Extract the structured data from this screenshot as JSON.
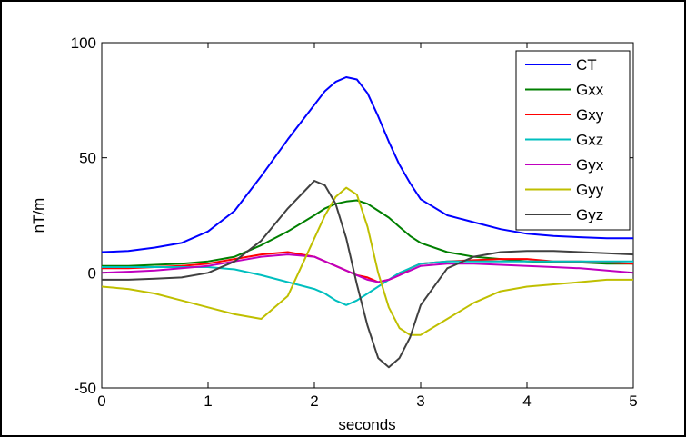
{
  "chart_data": {
    "type": "line",
    "title": "",
    "xlabel": "seconds",
    "ylabel": "nT/m",
    "xlim": [
      0,
      5
    ],
    "ylim": [
      -50,
      100
    ],
    "xticks": [
      0,
      1,
      2,
      3,
      4,
      5
    ],
    "yticks": [
      -50,
      0,
      50,
      100
    ],
    "grid": false,
    "legend_position": "top-right",
    "x": [
      0,
      0.25,
      0.5,
      0.75,
      1.0,
      1.25,
      1.5,
      1.75,
      2.0,
      2.1,
      2.2,
      2.3,
      2.4,
      2.5,
      2.6,
      2.7,
      2.8,
      2.9,
      3.0,
      3.25,
      3.5,
      3.75,
      4.0,
      4.25,
      4.5,
      4.75,
      5.0
    ],
    "series": [
      {
        "name": "CT",
        "color": "#0000ff",
        "values": [
          9,
          9.5,
          11,
          13,
          18,
          27,
          42,
          58,
          73,
          79,
          83,
          85,
          84,
          78,
          68,
          57,
          47,
          39,
          32,
          25,
          22,
          19,
          17,
          16,
          15.5,
          15,
          15
        ]
      },
      {
        "name": "Gxx",
        "color": "#007f00",
        "values": [
          3,
          3,
          3.5,
          4,
          5,
          7,
          12,
          18,
          25,
          28,
          30,
          31,
          31.5,
          30,
          27,
          24,
          20,
          16,
          13,
          9,
          7,
          6,
          5,
          4.5,
          4.5,
          4,
          4
        ]
      },
      {
        "name": "Gxy",
        "color": "#ff0000",
        "values": [
          2,
          2,
          2.5,
          3,
          4,
          6,
          8,
          9,
          7,
          5,
          3,
          1,
          -1,
          -2,
          -4,
          -3,
          -1,
          2,
          4,
          5,
          5.5,
          6,
          6,
          5,
          5,
          4.5,
          4
        ]
      },
      {
        "name": "Gxz",
        "color": "#00bfbf",
        "values": [
          2.5,
          2.5,
          2.5,
          2.5,
          2.5,
          1.5,
          -1,
          -4,
          -7,
          -9,
          -12,
          -14,
          -12,
          -9,
          -6,
          -3,
          0,
          2,
          4,
          5,
          5,
          5,
          5,
          5,
          5,
          5,
          5
        ]
      },
      {
        "name": "Gyx",
        "color": "#bf00bf",
        "values": [
          0,
          0.5,
          1,
          2,
          3,
          5,
          7,
          8,
          7,
          5,
          3,
          1,
          -1,
          -3,
          -4,
          -3,
          -1,
          1,
          3,
          4,
          4,
          3.5,
          3,
          2.5,
          2,
          1,
          0
        ]
      },
      {
        "name": "Gyy",
        "color": "#bfbf00",
        "values": [
          -6,
          -7,
          -9,
          -12,
          -15,
          -18,
          -20,
          -10,
          15,
          25,
          33,
          37,
          34,
          20,
          0,
          -15,
          -24,
          -27,
          -27,
          -20,
          -13,
          -8,
          -6,
          -5,
          -4,
          -3,
          -3
        ]
      },
      {
        "name": "Gyz",
        "color": "#404040",
        "values": [
          -3,
          -3,
          -2.5,
          -2,
          0,
          5,
          14,
          28,
          40,
          38,
          30,
          15,
          -5,
          -23,
          -37,
          -41,
          -37,
          -28,
          -14,
          2,
          7,
          9,
          9.5,
          9.5,
          9,
          8.5,
          8
        ]
      }
    ]
  }
}
